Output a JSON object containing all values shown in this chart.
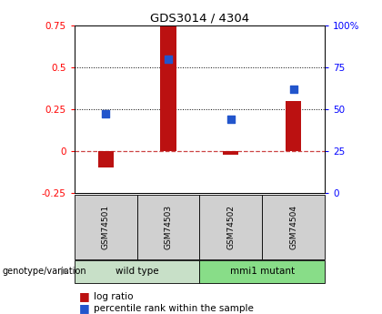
{
  "title": "GDS3014 / 4304",
  "samples": [
    "GSM74501",
    "GSM74503",
    "GSM74502",
    "GSM74504"
  ],
  "groups": [
    "wild type",
    "wild type",
    "mmi1 mutant",
    "mmi1 mutant"
  ],
  "log_ratios": [
    -0.1,
    0.75,
    -0.02,
    0.3
  ],
  "percentile_ranks": [
    47,
    80,
    44,
    62
  ],
  "bar_color": "#bb1111",
  "dot_color": "#2255cc",
  "ylim_left": [
    -0.25,
    0.75
  ],
  "ylim_right": [
    0,
    100
  ],
  "yticks_left": [
    -0.25,
    0.0,
    0.25,
    0.5,
    0.75
  ],
  "ytick_labels_left": [
    "-0.25",
    "0",
    "0.25",
    "0.5",
    "0.75"
  ],
  "yticks_right": [
    0,
    25,
    50,
    75,
    100
  ],
  "ytick_labels_right": [
    "0",
    "25",
    "50",
    "75",
    "100%"
  ],
  "group_label": "genotype/variation",
  "legend_log_ratio": "log ratio",
  "legend_percentile": "percentile rank within the sample",
  "group_unique": [
    "wild type",
    "mmi1 mutant"
  ],
  "group_bg": {
    "wild type": "#c8e0c8",
    "mmi1 mutant": "#88dd88"
  },
  "sample_box_color": "#d0d0d0",
  "hline_zero_color": "#cc4444",
  "hline_dotted_color": "black",
  "bar_width": 0.25
}
